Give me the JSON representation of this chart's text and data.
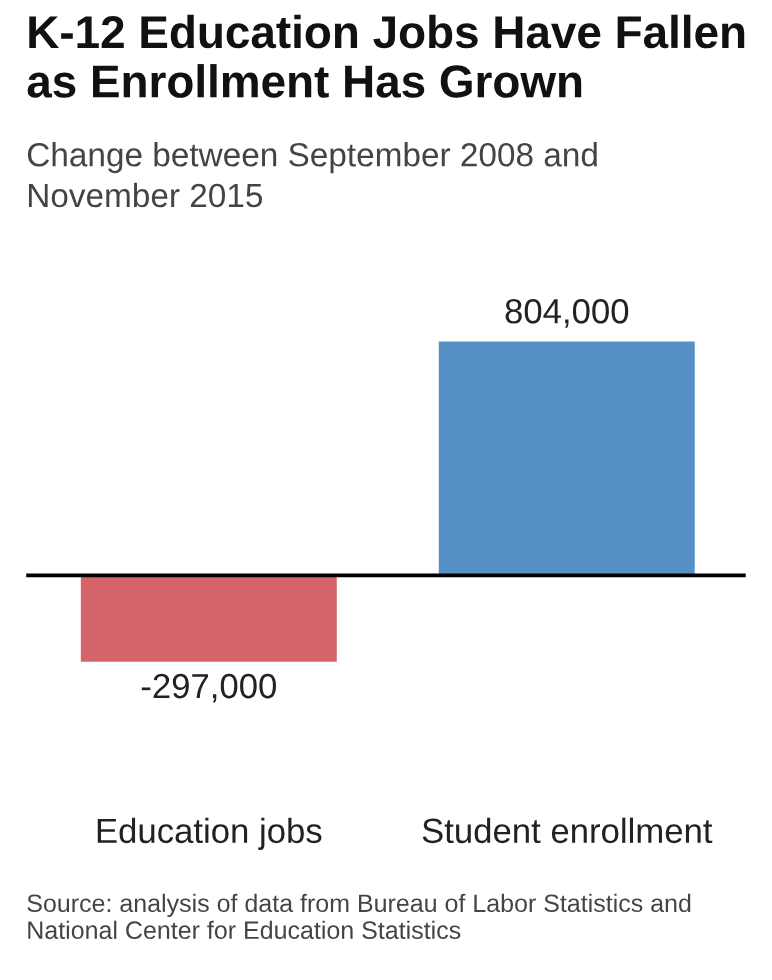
{
  "chart_data": {
    "type": "bar",
    "title": "K-12 Education Jobs Have Fallen\nas Enrollment Has Grown",
    "subtitle": "Change between September 2008 and\nNovember 2015",
    "categories": [
      "Education jobs",
      "Student enrollment"
    ],
    "values": [
      -297000,
      804000
    ],
    "colors": [
      "#d5646b",
      "#5591c6"
    ],
    "value_labels": [
      "-297,000",
      "804,000"
    ],
    "tick_labels": "x",
    "annotations": [
      "Source: analysis of data from Bureau of Labor Statistics and National Center for Education Statistics"
    ]
  }
}
